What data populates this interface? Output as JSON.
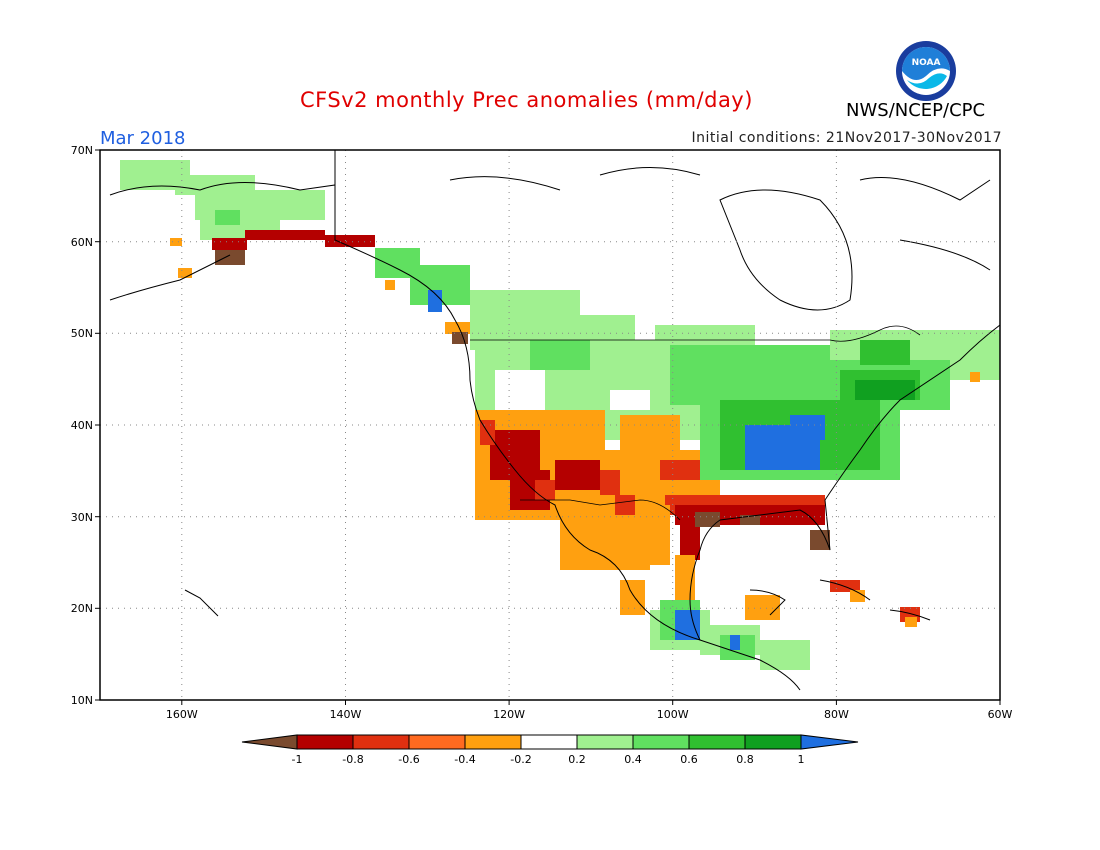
{
  "header": {
    "title": "CFSv2 monthly Prec anomalies (mm/day)",
    "month": "Mar 2018",
    "initial_conditions": "Initial conditions: 21Nov2017-30Nov2017",
    "agency": "NWS/NCEP/CPC",
    "logo_text": "NOAA"
  },
  "map": {
    "lat_labels": [
      "70N",
      "60N",
      "50N",
      "40N",
      "30N",
      "20N",
      "10N"
    ],
    "lon_labels": [
      "160W",
      "140W",
      "120W",
      "100W",
      "80W",
      "60W"
    ],
    "lat_range": [
      10,
      70
    ],
    "lon_range": [
      -170,
      -60
    ],
    "gridlines": true
  },
  "colorbar": {
    "labels": [
      "-1",
      "-0.8",
      "-0.6",
      "-0.4",
      "-0.2",
      "0.2",
      "0.4",
      "0.6",
      "0.8",
      "1"
    ],
    "colors": [
      "#7a4a2e",
      "#b40000",
      "#e03010",
      "#ff6a20",
      "#ffa010",
      "#ffffff",
      "#a0f090",
      "#60e060",
      "#30c030",
      "#10a020",
      "#1f6fe0"
    ]
  },
  "anomaly_regions": [
    {
      "name": "alaska-north-wet",
      "color": "#a0f090"
    },
    {
      "name": "alaska-south-dry",
      "color": "#b40000"
    },
    {
      "name": "pacific-nw-wet",
      "color": "#60e060"
    },
    {
      "name": "northern-plains-wet",
      "color": "#a0f090"
    },
    {
      "name": "ohio-valley-wet",
      "color": "#1f6fe0"
    },
    {
      "name": "great-lakes-wet",
      "color": "#30c030"
    },
    {
      "name": "northeast-wet",
      "color": "#60e060"
    },
    {
      "name": "california-dry",
      "color": "#b40000"
    },
    {
      "name": "southwest-dry",
      "color": "#ffa010"
    },
    {
      "name": "gulf-coast-dry",
      "color": "#b40000"
    },
    {
      "name": "florida-dry",
      "color": "#7a4a2e"
    },
    {
      "name": "mexico-dry",
      "color": "#ffa010"
    },
    {
      "name": "southern-mexico-wet",
      "color": "#1f6fe0"
    },
    {
      "name": "caribbean-dry",
      "color": "#e03010"
    }
  ]
}
